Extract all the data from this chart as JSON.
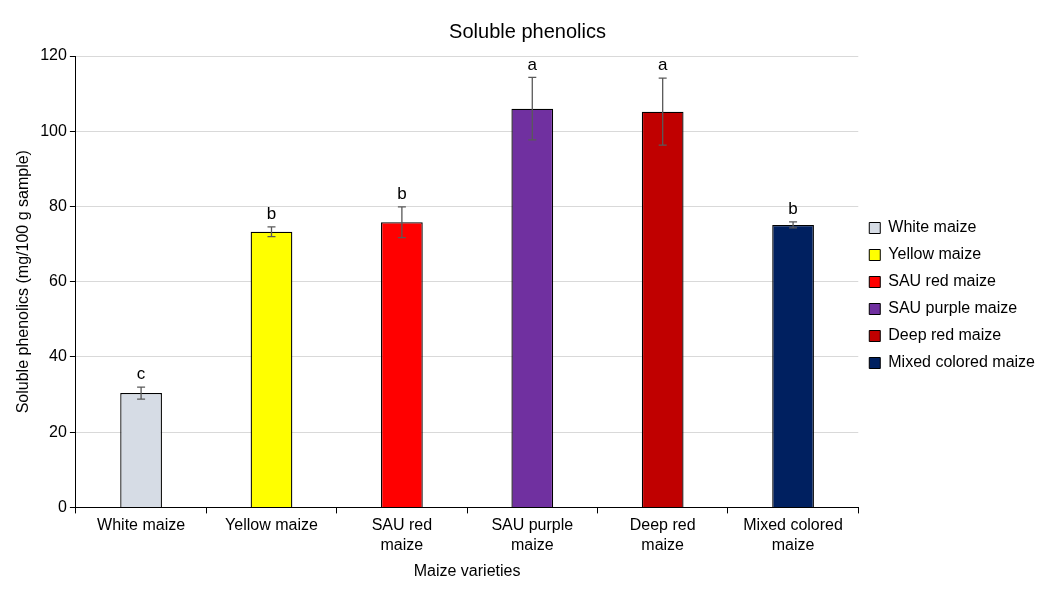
{
  "chart_data": {
    "type": "bar",
    "title": "Soluble phenolics",
    "xlabel": "Maize varieties",
    "ylabel": "Soluble phenolics (mg/100 g sample)",
    "categories": [
      "White maize",
      "Yellow maize",
      "SAU red maize",
      "SAU purple maize",
      "Deep red maize",
      "Mixed colored maize"
    ],
    "series": [
      {
        "name": "White maize",
        "color": "#d6dce5",
        "values": [
          30.4,
          null,
          null,
          null,
          null,
          null
        ],
        "errors": [
          1.6,
          null,
          null,
          null,
          null,
          null
        ]
      },
      {
        "name": "Yellow maize",
        "color": "#ffff00",
        "values": [
          null,
          73.3,
          null,
          null,
          null,
          null
        ],
        "errors": [
          null,
          1.3,
          null,
          null,
          null,
          null
        ]
      },
      {
        "name": "SAU red maize",
        "color": "#ff0000",
        "values": [
          null,
          null,
          75.8,
          null,
          null,
          null
        ],
        "errors": [
          null,
          null,
          4.1,
          null,
          null,
          null
        ]
      },
      {
        "name": "SAU purple maize",
        "color": "#7030a0",
        "values": [
          null,
          null,
          null,
          106.0,
          null,
          null
        ],
        "errors": [
          null,
          null,
          null,
          8.3,
          null,
          null
        ]
      },
      {
        "name": "Deep red maize",
        "color": "#c00000",
        "values": [
          null,
          null,
          null,
          null,
          105.2,
          null
        ],
        "errors": [
          null,
          null,
          null,
          null,
          8.9,
          null
        ]
      },
      {
        "name": "Mixed colored maize",
        "color": "#002060",
        "values": [
          null,
          null,
          null,
          null,
          null,
          75.1
        ],
        "errors": [
          null,
          null,
          null,
          null,
          null,
          0.8
        ]
      }
    ],
    "ylim": [
      0,
      120
    ],
    "yticks": [
      0,
      20,
      40,
      60,
      80,
      100,
      120
    ],
    "grid": "y",
    "legend": "right",
    "annotations": [
      {
        "text": "c",
        "x": "White maize",
        "y": 32.0
      },
      {
        "text": "b",
        "x": "Yellow maize",
        "y": 74.6
      },
      {
        "text": "b",
        "x": "SAU red maize",
        "y": 79.9
      },
      {
        "text": "a",
        "x": "SAU purple maize",
        "y": 114.3
      },
      {
        "text": "a",
        "x": "Deep red maize",
        "y": 114.1
      },
      {
        "text": "b",
        "x": "Mixed colored maize",
        "y": 75.9
      }
    ]
  }
}
